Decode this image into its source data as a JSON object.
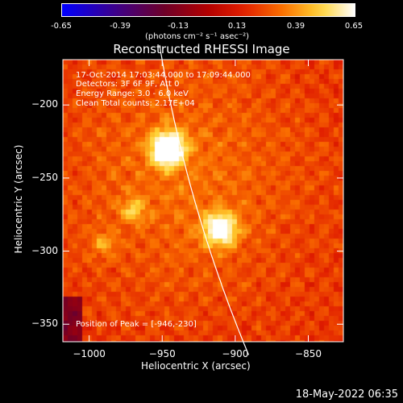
{
  "colorbar": {
    "ticks": [
      "-0.65",
      "-0.39",
      "-0.13",
      "0.13",
      "0.39",
      "0.65"
    ],
    "unit_label": "(photons cm⁻² s⁻¹ asec⁻²)"
  },
  "chart_data": {
    "type": "heatmap",
    "title": "Reconstructed RHESSI Image",
    "xlabel": "Heliocentric X (arcsec)",
    "ylabel": "Heliocentric Y (arcsec)",
    "xlim": [
      -1018,
      -826
    ],
    "ylim": [
      -362,
      -169
    ],
    "xticks": [
      "-1000",
      "-950",
      "-900",
      "-850"
    ],
    "yticks": [
      "-200",
      "-250",
      "-300",
      "-350"
    ],
    "xtick_values": [
      -1000,
      -950,
      -900,
      -850
    ],
    "ytick_values": [
      -200,
      -250,
      -300,
      -350
    ],
    "color_range": [
      -0.65,
      0.65
    ],
    "sources": [
      {
        "x": -946,
        "y": -230,
        "intensity": 0.65
      },
      {
        "x": -910,
        "y": -285,
        "intensity": 0.5
      },
      {
        "x": -970,
        "y": -272,
        "intensity": 0.2
      },
      {
        "x": -990,
        "y": -295,
        "intensity": 0.15
      }
    ],
    "annotations": {
      "time": "17-Oct-2014 17:03:44.000 to 17:09:44.000",
      "detectors": "Detectors: 3F 6F 9F, Att 0",
      "energy": "Energy Range: 3.0 - 6.0 keV",
      "clean": "Clean     Total counts: 2.17E+04",
      "peak": "Position of Peak = [-946,-230]"
    }
  },
  "footer": {
    "date": "18-May-2022 06:35"
  }
}
